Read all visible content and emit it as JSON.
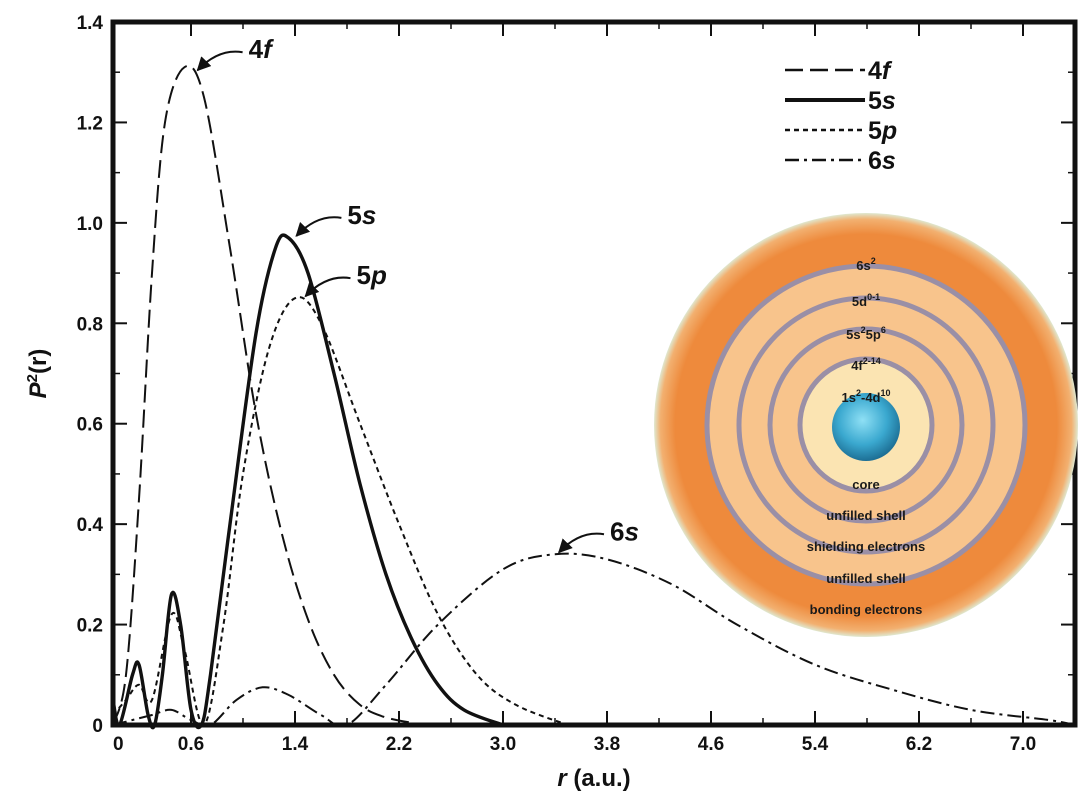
{
  "chart_data": {
    "type": "line",
    "xlabel": {
      "prefix": "r",
      "suffix": " (a.u.)"
    },
    "ylabel": {
      "base": "P",
      "sup": "2",
      "arg": "(r)"
    },
    "xlim": [
      0,
      7.4
    ],
    "ylim": [
      0,
      1.4
    ],
    "grid": false,
    "legend_position": "top-right",
    "x_ticks": [
      "0",
      "0.6",
      "1.4",
      "2.2",
      "3.0",
      "3.8",
      "4.6",
      "5.4",
      "6.2",
      "7.0"
    ],
    "y_ticks": [
      "0",
      "0.2",
      "0.4",
      "0.6",
      "0.8",
      "1.0",
      "1.2",
      "1.4"
    ],
    "series": [
      {
        "name": "4f",
        "style": "long-dash",
        "points": [
          [
            0,
            0
          ],
          [
            0.1,
            0.1
          ],
          [
            0.2,
            0.45
          ],
          [
            0.3,
            0.9
          ],
          [
            0.4,
            1.2
          ],
          [
            0.55,
            1.31
          ],
          [
            0.7,
            1.25
          ],
          [
            0.9,
            0.95
          ],
          [
            1.1,
            0.62
          ],
          [
            1.3,
            0.38
          ],
          [
            1.5,
            0.21
          ],
          [
            1.7,
            0.1
          ],
          [
            1.9,
            0.04
          ],
          [
            2.1,
            0.015
          ],
          [
            2.4,
            0
          ]
        ]
      },
      {
        "name": "5s",
        "style": "solid",
        "points": [
          [
            0,
            0.05
          ],
          [
            0.05,
            0.0
          ],
          [
            0.15,
            0.1
          ],
          [
            0.2,
            0.12
          ],
          [
            0.27,
            0.02
          ],
          [
            0.32,
            0.0
          ],
          [
            0.38,
            0.1
          ],
          [
            0.45,
            0.26
          ],
          [
            0.52,
            0.2
          ],
          [
            0.6,
            0.03
          ],
          [
            0.68,
            0.0
          ],
          [
            0.75,
            0.1
          ],
          [
            0.9,
            0.4
          ],
          [
            1.1,
            0.78
          ],
          [
            1.25,
            0.95
          ],
          [
            1.35,
            0.97
          ],
          [
            1.5,
            0.9
          ],
          [
            1.7,
            0.7
          ],
          [
            1.9,
            0.48
          ],
          [
            2.1,
            0.3
          ],
          [
            2.3,
            0.17
          ],
          [
            2.5,
            0.08
          ],
          [
            2.7,
            0.03
          ],
          [
            3.0,
            0
          ]
        ]
      },
      {
        "name": "5p",
        "style": "short-dash",
        "points": [
          [
            0,
            0.02
          ],
          [
            0.1,
            0.05
          ],
          [
            0.2,
            0.08
          ],
          [
            0.3,
            0.05
          ],
          [
            0.45,
            0.22
          ],
          [
            0.55,
            0.15
          ],
          [
            0.7,
            0.0
          ],
          [
            0.85,
            0.2
          ],
          [
            1.0,
            0.5
          ],
          [
            1.2,
            0.75
          ],
          [
            1.4,
            0.85
          ],
          [
            1.6,
            0.8
          ],
          [
            1.9,
            0.6
          ],
          [
            2.2,
            0.4
          ],
          [
            2.5,
            0.22
          ],
          [
            2.8,
            0.1
          ],
          [
            3.1,
            0.04
          ],
          [
            3.5,
            0
          ]
        ]
      },
      {
        "name": "6s",
        "style": "dash-dot",
        "points": [
          [
            0,
            0.0
          ],
          [
            0.15,
            0.01
          ],
          [
            0.3,
            0.02
          ],
          [
            0.45,
            0.03
          ],
          [
            0.6,
            0.01
          ],
          [
            0.75,
            0.0
          ],
          [
            0.95,
            0.05
          ],
          [
            1.15,
            0.075
          ],
          [
            1.35,
            0.06
          ],
          [
            1.6,
            0.02
          ],
          [
            1.8,
            0.0
          ],
          [
            2.1,
            0.08
          ],
          [
            2.5,
            0.2
          ],
          [
            3.0,
            0.31
          ],
          [
            3.4,
            0.34
          ],
          [
            3.8,
            0.33
          ],
          [
            4.3,
            0.28
          ],
          [
            4.8,
            0.2
          ],
          [
            5.4,
            0.12
          ],
          [
            6.0,
            0.07
          ],
          [
            6.6,
            0.03
          ],
          [
            7.2,
            0.01
          ],
          [
            7.4,
            0.0
          ]
        ]
      }
    ],
    "annotations": [
      {
        "id": "4f",
        "text": "4",
        "italic": "f",
        "x": 0.62,
        "y": 1.3
      },
      {
        "id": "5s",
        "text": "5",
        "italic": "s",
        "x": 1.38,
        "y": 0.97
      },
      {
        "id": "5p",
        "text": "5",
        "italic": "p",
        "x": 1.45,
        "y": 0.85
      },
      {
        "id": "6s",
        "text": "6",
        "italic": "s",
        "x": 3.4,
        "y": 0.34
      }
    ],
    "legend": [
      {
        "name": "4f",
        "num": "4",
        "italic": "f",
        "style": "long-dash"
      },
      {
        "name": "5s",
        "num": "5",
        "italic": "s",
        "style": "solid"
      },
      {
        "name": "5p",
        "num": "5",
        "italic": "p",
        "style": "short-dash"
      },
      {
        "name": "6s",
        "num": "6",
        "italic": "s",
        "style": "dash-dot"
      }
    ]
  },
  "inset": {
    "shell_labels": [
      {
        "main": "6s",
        "sup": "2"
      },
      {
        "main": "5d",
        "sup": "0-1"
      },
      {
        "main": "5s",
        "sup": "2",
        "main2": "5p",
        "sup2": "6"
      },
      {
        "main": "4f",
        "sup": "2-14"
      },
      {
        "main": "1s",
        "sup": "2",
        "main2": "-4d",
        "sup2": "10"
      }
    ],
    "descriptions": [
      "core",
      "unfilled shell",
      "shielding electrons",
      "unfilled shell",
      "bonding electrons"
    ],
    "colors": {
      "outer": "#ee8a3c",
      "shell": "#f8c48c",
      "divider": "#9a8fa6",
      "core": "#fbe4b2",
      "nucleus": "#3aa8cf"
    }
  }
}
